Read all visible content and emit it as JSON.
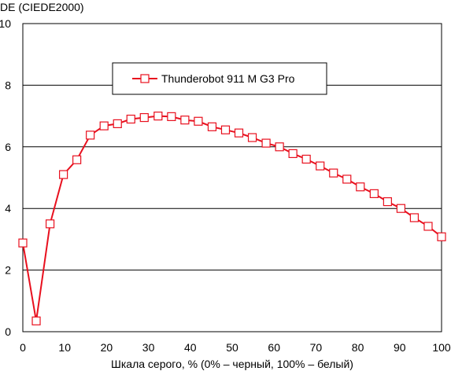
{
  "chart_data": {
    "type": "line",
    "title": "",
    "ylabel": "DE (CIEDE2000)",
    "xlabel": "Шкала серого, % (0% – черный, 100% – белый)",
    "xlim": [
      0,
      100
    ],
    "ylim": [
      0,
      10
    ],
    "x_ticks": [
      0,
      10,
      20,
      30,
      40,
      50,
      60,
      70,
      80,
      90,
      100
    ],
    "y_ticks": [
      0,
      2,
      4,
      6,
      8,
      10
    ],
    "grid": "horizontal",
    "legend_position": "top-center",
    "series": [
      {
        "name": "Thunderobot 911 M G3 Pro",
        "color": "#e8101e",
        "marker": "square-open",
        "x": [
          0,
          3.2,
          6.5,
          9.7,
          12.9,
          16.1,
          19.4,
          22.6,
          25.8,
          29,
          32.3,
          35.5,
          38.7,
          41.9,
          45.2,
          48.4,
          51.6,
          54.8,
          58.1,
          61.3,
          64.5,
          67.7,
          71,
          74.2,
          77.4,
          80.6,
          83.9,
          87.1,
          90.3,
          93.5,
          96.8,
          100
        ],
        "y": [
          2.88,
          0.35,
          3.5,
          5.1,
          5.58,
          6.38,
          6.68,
          6.75,
          6.9,
          6.95,
          7.0,
          6.98,
          6.87,
          6.83,
          6.65,
          6.55,
          6.45,
          6.3,
          6.12,
          6.0,
          5.78,
          5.6,
          5.38,
          5.15,
          4.95,
          4.7,
          4.48,
          4.22,
          4.0,
          3.7,
          3.42,
          3.08
        ]
      }
    ]
  }
}
